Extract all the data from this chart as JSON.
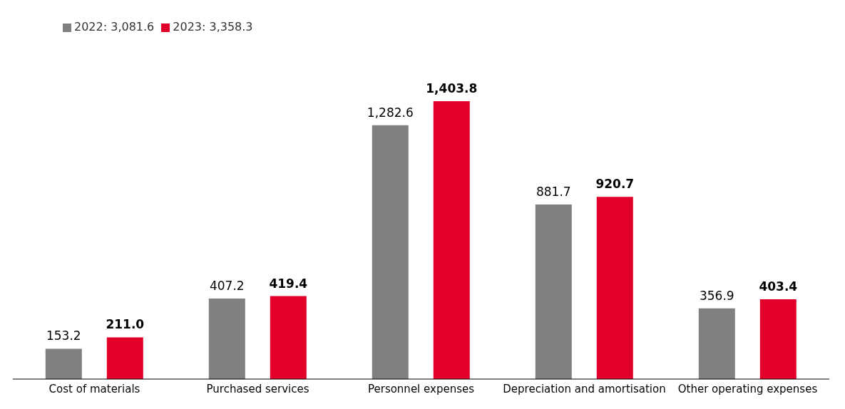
{
  "chart_data": {
    "type": "bar",
    "categories": [
      "Cost of materials",
      "Purchased services",
      "Personnel expenses",
      "Depreciation and amortisation",
      "Other operating expenses"
    ],
    "series": [
      {
        "name": "2022: 3,081.6",
        "color": "#808080",
        "values": [
          153.2,
          407.2,
          1282.6,
          881.7,
          356.9
        ],
        "value_labels": [
          "153.2",
          "407.2",
          "1,282.6",
          "881.7",
          "356.9"
        ]
      },
      {
        "name": "2023: 3,358.3",
        "color": "#e2002a",
        "values": [
          211.0,
          419.4,
          1403.8,
          920.7,
          403.4
        ],
        "value_labels": [
          "211.0",
          "419.4",
          "1,403.8",
          "920.7",
          "403.4"
        ]
      }
    ],
    "legend": "top left",
    "grid": false
  }
}
